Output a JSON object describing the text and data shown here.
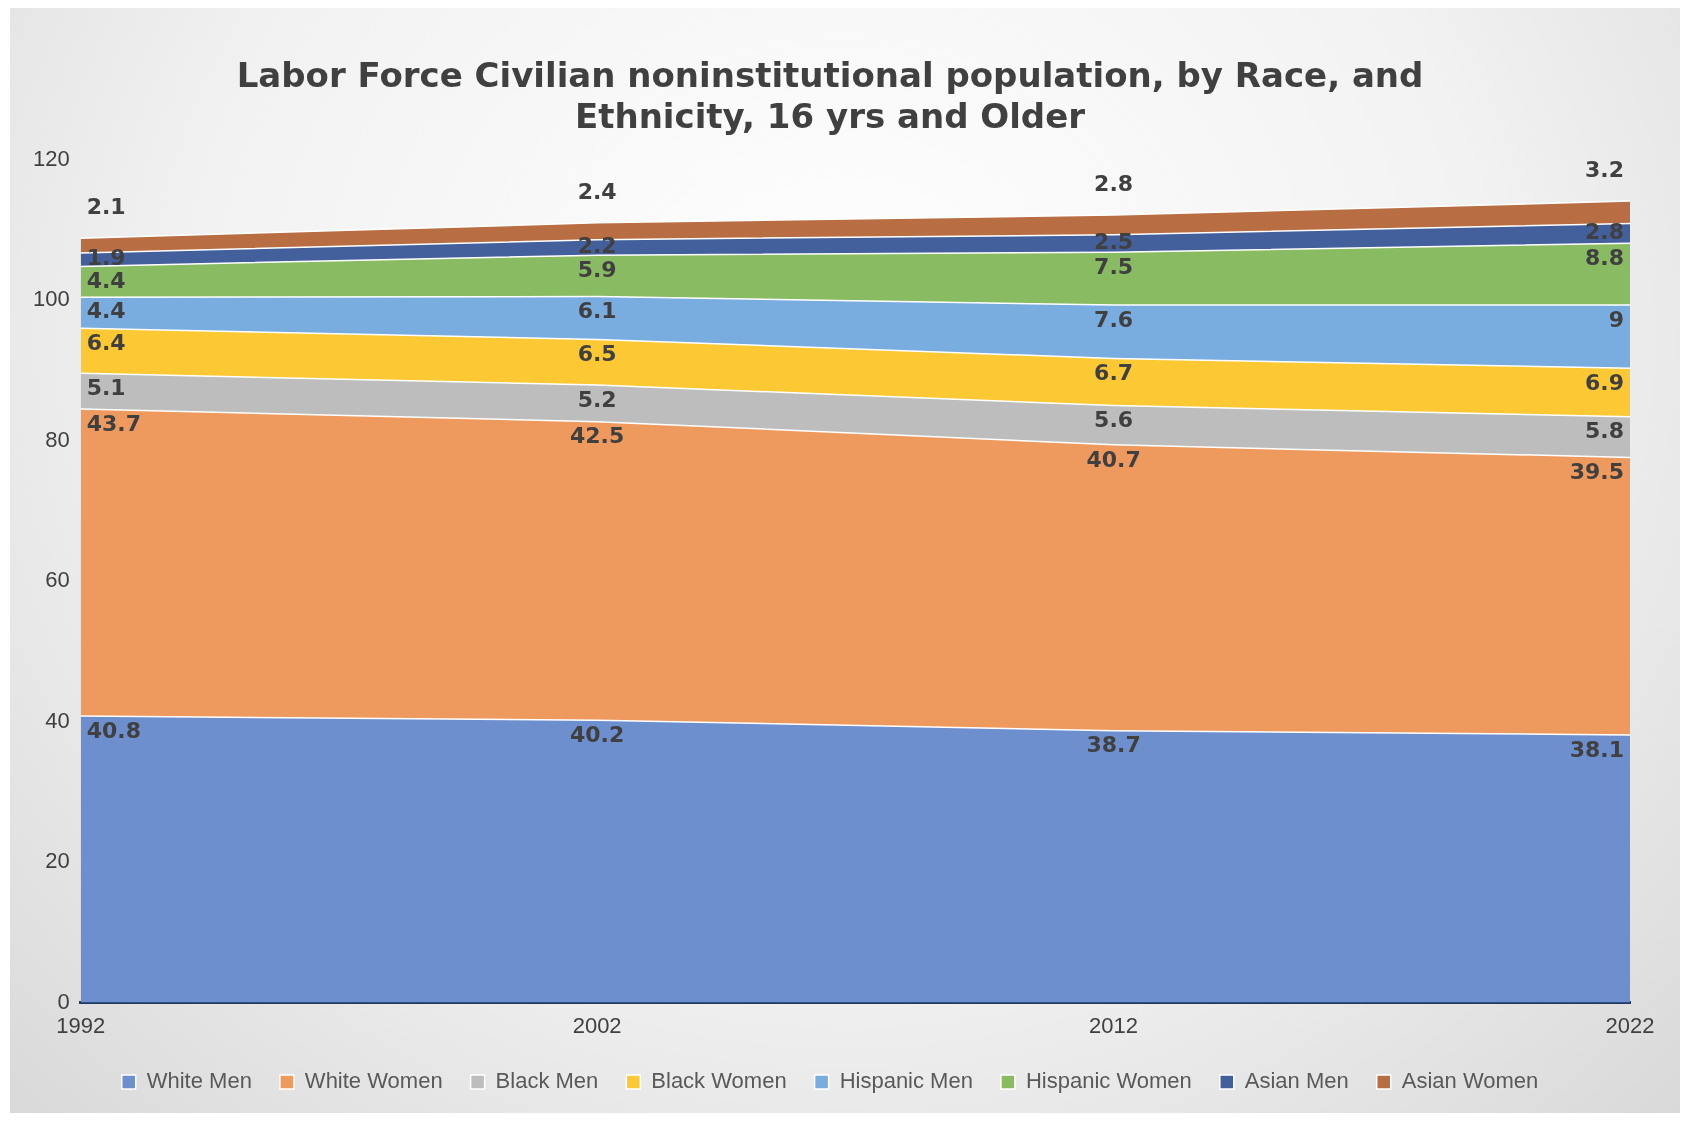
{
  "chart_data": {
    "type": "area",
    "stacked": true,
    "title": "Labor Force Civilian noninstitutional population, by Race, and Ethnicity, 16 yrs and Older",
    "categories": [
      "1992",
      "2002",
      "2012",
      "2022"
    ],
    "series": [
      {
        "name": "White Men",
        "color": "#6e8fce",
        "values": [
          40.8,
          40.2,
          38.7,
          38.1
        ]
      },
      {
        "name": "White Women",
        "color": "#ee9a5e",
        "values": [
          43.7,
          42.5,
          40.7,
          39.5
        ]
      },
      {
        "name": "Black Men",
        "color": "#bdbdbd",
        "values": [
          5.1,
          5.2,
          5.6,
          5.8
        ]
      },
      {
        "name": "Black Women",
        "color": "#fcc934",
        "values": [
          6.4,
          6.5,
          6.7,
          6.9
        ]
      },
      {
        "name": "Hispanic Men",
        "color": "#79acdf",
        "values": [
          4.4,
          6.1,
          7.6,
          9
        ]
      },
      {
        "name": "Hispanic Women",
        "color": "#88bb62",
        "values": [
          4.4,
          5.9,
          7.5,
          8.8
        ]
      },
      {
        "name": "Asian Men",
        "color": "#44609c",
        "values": [
          1.9,
          2.2,
          2.5,
          2.8
        ]
      },
      {
        "name": "Asian Women",
        "color": "#b86d43",
        "values": [
          2.1,
          2.4,
          2.8,
          3.2
        ]
      }
    ],
    "ylim": [
      0,
      120
    ],
    "yticks": [
      0,
      20,
      40,
      60,
      80,
      100,
      120
    ],
    "legend": "bottom",
    "data_labels": true
  }
}
